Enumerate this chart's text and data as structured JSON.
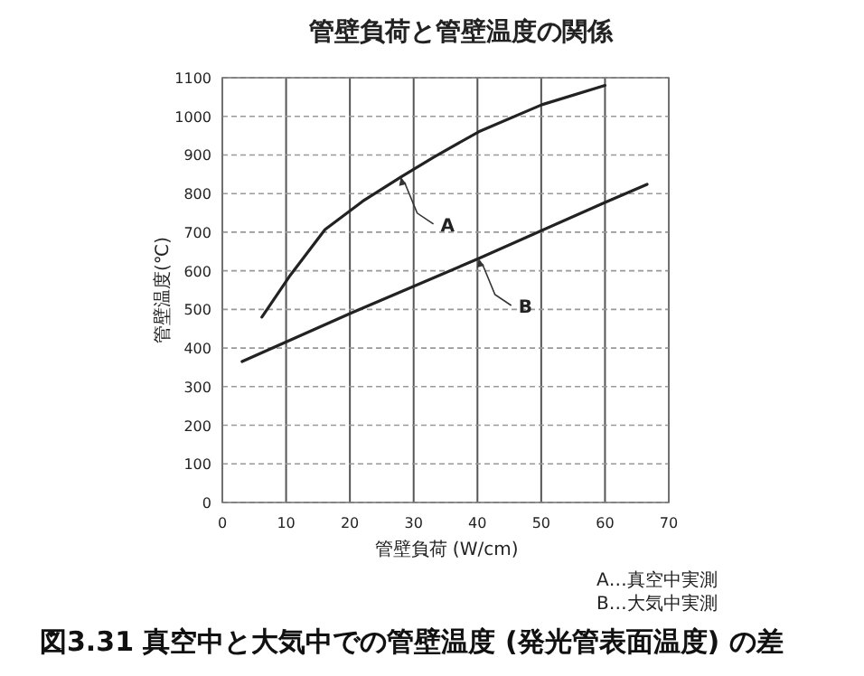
{
  "chart_data": {
    "type": "line",
    "title": "管壁負荷と管壁温度の関係",
    "xlabel": "管壁負荷 (W/cm)",
    "ylabel": "管壁温度(℃)",
    "xlim": [
      0,
      70
    ],
    "xticks": [
      0,
      10,
      20,
      30,
      40,
      50,
      60,
      70
    ],
    "ylim": [
      0,
      1100
    ],
    "yticks": [
      0,
      100,
      200,
      300,
      400,
      500,
      600,
      700,
      800,
      900,
      1000,
      1100
    ],
    "grid": true,
    "marker": "none",
    "line_style": "solid",
    "series": [
      {
        "color": "#222222",
        "x": [
          6.2,
          10.5,
          16.1,
          22,
          28,
          33.1,
          40.2,
          50.1,
          60
        ],
        "values": [
          480,
          585,
          707,
          780,
          843,
          894,
          960,
          1030,
          1080
        ]
      },
      {
        "color": "#222222",
        "x": [
          3.1,
          20.4,
          40.2,
          60,
          66.6
        ],
        "values": [
          365,
          492,
          632,
          777,
          824
        ]
      }
    ],
    "annotations": [
      {
        "text": "A",
        "x": 28,
        "y": 843
      },
      {
        "text": "B",
        "x": 40.2,
        "y": 632
      },
      "A…真空中実測",
      "B…大気中実測",
      "図3.31 真空中と大気中での管壁温度 (発光管表面温度) の差"
    ]
  }
}
